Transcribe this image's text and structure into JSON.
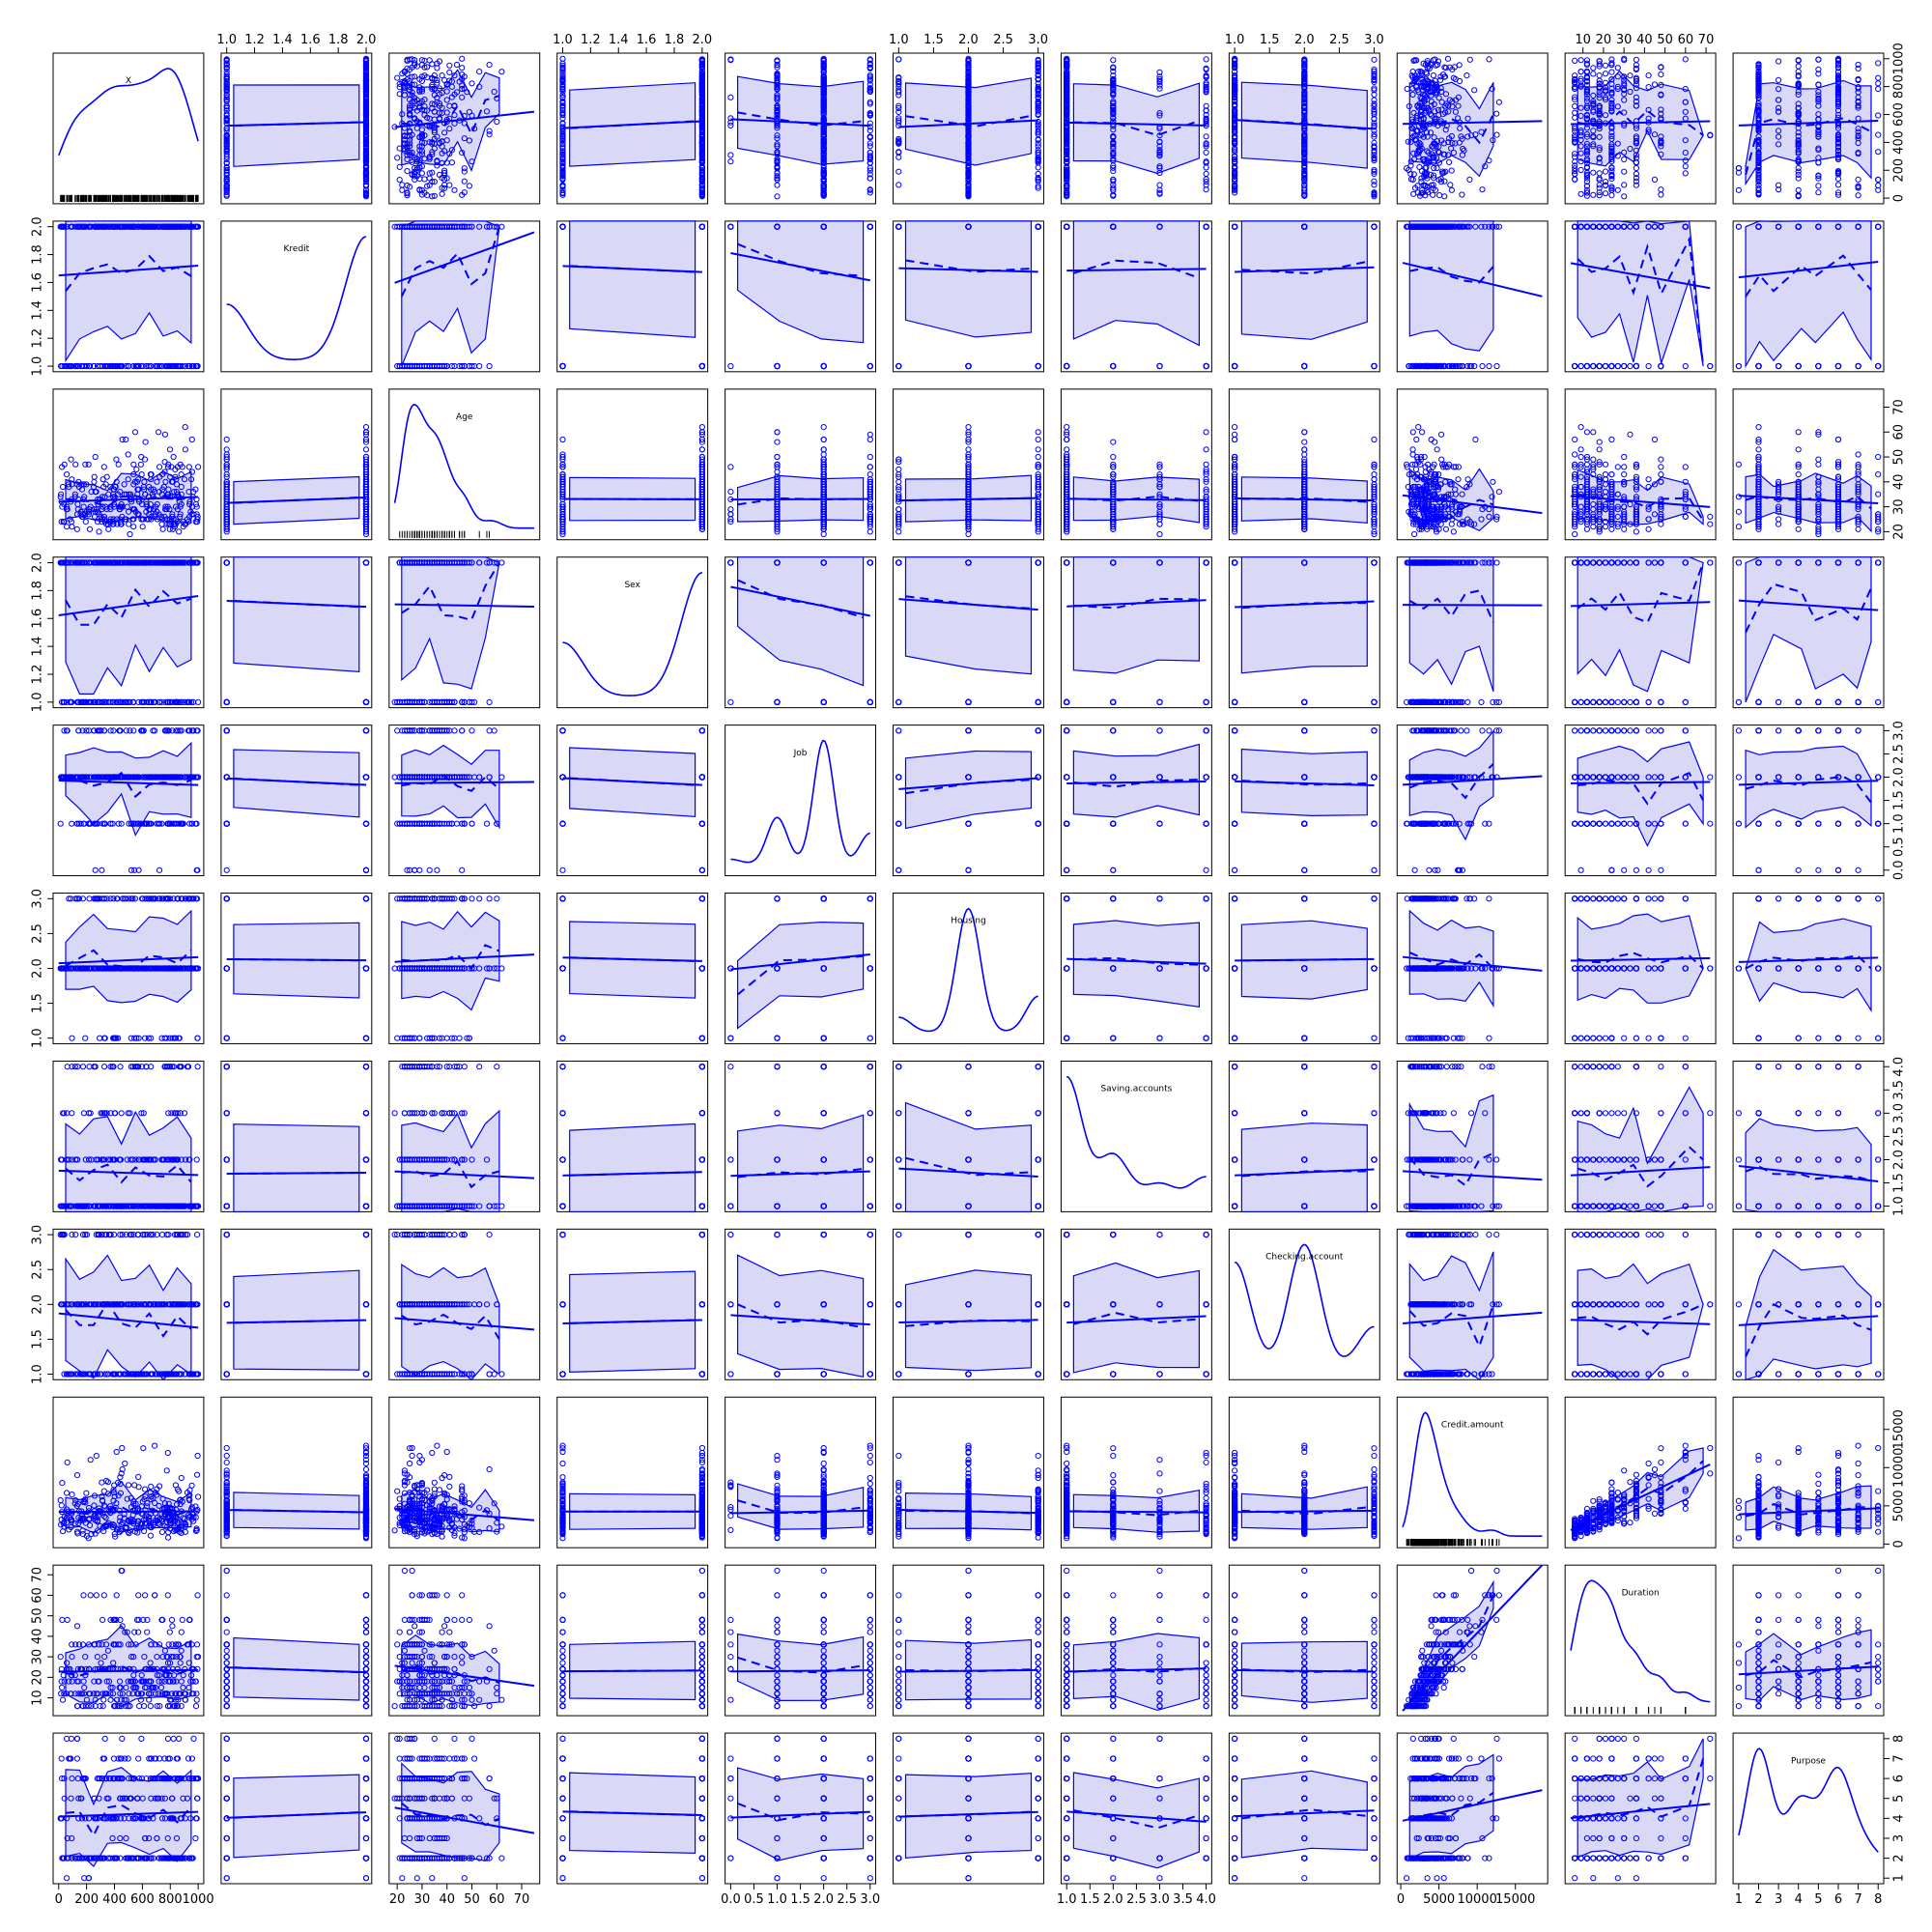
{
  "chart_data": {
    "type": "scatter",
    "title": "",
    "colors": {
      "points": "#0000ff",
      "band_fill": "#d9d9f7"
    },
    "grid": false,
    "variables": [
      {
        "name": "X",
        "range": [
          0,
          1000
        ],
        "ticks": [
          0,
          200,
          400,
          600,
          800,
          1000
        ],
        "tick_labels": [
          "0",
          "200",
          "400",
          "600",
          "800",
          "1000"
        ],
        "kind": "uniform",
        "rug": "dense"
      },
      {
        "name": "Kredit",
        "range": [
          1,
          2
        ],
        "ticks": [
          1.0,
          1.2,
          1.4,
          1.6,
          1.8,
          2.0
        ],
        "tick_labels": [
          "1.0",
          "1.2",
          "1.4",
          "1.6",
          "1.8",
          "2.0"
        ],
        "kind": "categorical",
        "levels": [
          1,
          2
        ],
        "weights": [
          0.3,
          0.7
        ],
        "rug": "none"
      },
      {
        "name": "Age",
        "range": [
          19,
          75
        ],
        "ticks": [
          20,
          30,
          40,
          50,
          60,
          70
        ],
        "tick_labels": [
          "20",
          "30",
          "40",
          "50",
          "60",
          "70"
        ],
        "kind": "skewed",
        "rug": "sparse"
      },
      {
        "name": "Sex",
        "range": [
          1,
          2
        ],
        "ticks": [
          1.0,
          1.2,
          1.4,
          1.6,
          1.8,
          2.0
        ],
        "tick_labels": [
          "1.0",
          "1.2",
          "1.4",
          "1.6",
          "1.8",
          "2.0"
        ],
        "kind": "categorical",
        "levels": [
          1,
          2
        ],
        "weights": [
          0.31,
          0.69
        ],
        "rug": "none"
      },
      {
        "name": "Job",
        "range": [
          0,
          3
        ],
        "ticks": [
          0,
          0.5,
          1.0,
          1.5,
          2.0,
          2.5,
          3.0
        ],
        "tick_labels": [
          "0.0",
          "0.5",
          "1.0",
          "1.5",
          "2.0",
          "2.5",
          "3.0"
        ],
        "kind": "categorical",
        "levels": [
          0,
          1,
          2,
          3
        ],
        "weights": [
          0.02,
          0.2,
          0.63,
          0.15
        ],
        "rug": "none"
      },
      {
        "name": "Housing",
        "range": [
          1,
          3
        ],
        "ticks": [
          1.0,
          1.5,
          2.0,
          2.5,
          3.0
        ],
        "tick_labels": [
          "1.0",
          "1.5",
          "2.0",
          "2.5",
          "3.0"
        ],
        "kind": "categorical",
        "levels": [
          1,
          2,
          3
        ],
        "weights": [
          0.11,
          0.71,
          0.18
        ],
        "rug": "none"
      },
      {
        "name": "Saving.accounts",
        "range": [
          1,
          4
        ],
        "ticks": [
          1.0,
          1.5,
          2.0,
          2.5,
          3.0,
          3.5,
          4.0
        ],
        "tick_labels": [
          "1.0",
          "1.5",
          "2.0",
          "2.5",
          "3.0",
          "3.5",
          "4.0"
        ],
        "kind": "categorical",
        "levels": [
          1,
          2,
          3,
          4
        ],
        "weights": [
          0.6,
          0.2,
          0.1,
          0.1
        ],
        "rug": "none"
      },
      {
        "name": "Checking.account",
        "range": [
          1,
          3
        ],
        "ticks": [
          1.0,
          1.5,
          2.0,
          2.5,
          3.0
        ],
        "tick_labels": [
          "1.0",
          "1.5",
          "2.0",
          "2.5",
          "3.0"
        ],
        "kind": "categorical",
        "levels": [
          1,
          2,
          3
        ],
        "weights": [
          0.4,
          0.46,
          0.14
        ],
        "rug": "none"
      },
      {
        "name": "Credit.amount",
        "range": [
          250,
          18500
        ],
        "ticks": [
          0,
          5000,
          10000,
          15000
        ],
        "tick_labels": [
          "0",
          "5000",
          "10000",
          "15000"
        ],
        "kind": "skewed",
        "rug": "dense"
      },
      {
        "name": "Duration",
        "range": [
          4,
          72
        ],
        "ticks": [
          10,
          20,
          30,
          40,
          50,
          60,
          70
        ],
        "tick_labels": [
          "10",
          "20",
          "30",
          "40",
          "50",
          "60",
          "70"
        ],
        "kind": "discrete-skewed",
        "levels": [
          6,
          9,
          12,
          15,
          18,
          21,
          24,
          27,
          30,
          33,
          36,
          42,
          45,
          48,
          60,
          72
        ],
        "rug": "sparse"
      },
      {
        "name": "Purpose",
        "range": [
          1,
          8
        ],
        "ticks": [
          1,
          2,
          3,
          4,
          5,
          6,
          7,
          8
        ],
        "tick_labels": [
          "1",
          "2",
          "3",
          "4",
          "5",
          "6",
          "7",
          "8"
        ],
        "kind": "categorical",
        "levels": [
          1,
          2,
          3,
          4,
          5,
          6,
          7,
          8
        ],
        "weights": [
          0.02,
          0.28,
          0.03,
          0.2,
          0.1,
          0.28,
          0.06,
          0.03
        ],
        "rug": "none"
      }
    ],
    "diagonal": "density",
    "lower": "scatter with linear fit (solid), smoother (dashed) and spread band",
    "upper": "scatter with linear fit (solid), smoother (dashed) and spread band"
  }
}
